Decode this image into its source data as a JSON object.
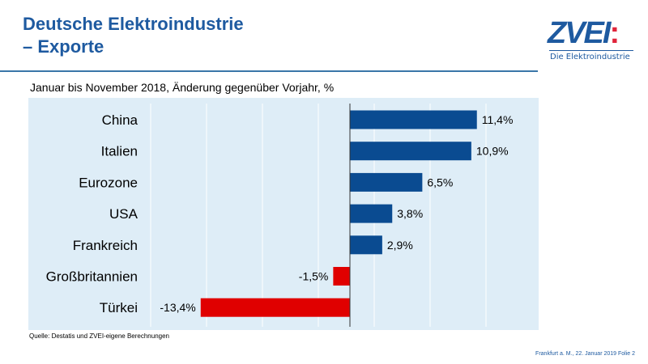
{
  "header": {
    "title_line1": "Deutsche Elektroindustrie",
    "title_line2": "– Exporte"
  },
  "logo": {
    "text": "ZVEI",
    "colon": ":",
    "tagline": "Die Elektroindustrie"
  },
  "colors": {
    "positive": "#0a4b91",
    "negative": "#e00000",
    "brand": "#1e5aa0",
    "plot_bg": "#deedf7"
  },
  "chart_data": {
    "type": "bar",
    "orientation": "horizontal",
    "subtitle": "Januar bis November 2018, Änderung gegenüber Vorjahr, %",
    "categories": [
      "China",
      "Italien",
      "Eurozone",
      "USA",
      "Frankreich",
      "Großbritannien",
      "Türkei"
    ],
    "values": [
      11.4,
      10.9,
      6.5,
      3.8,
      2.9,
      -1.5,
      -13.4
    ],
    "data_labels": [
      "11,4%",
      "10,9%",
      "6,5%",
      "3,8%",
      "2,9%",
      "-1,5%",
      "-13,4%"
    ],
    "grid": "vertical"
  },
  "source": "Quelle: Destatis und ZVEI-eigene Berechnungen",
  "footer": "Frankfurt a. M., 22. Januar 2019  Folie 2"
}
